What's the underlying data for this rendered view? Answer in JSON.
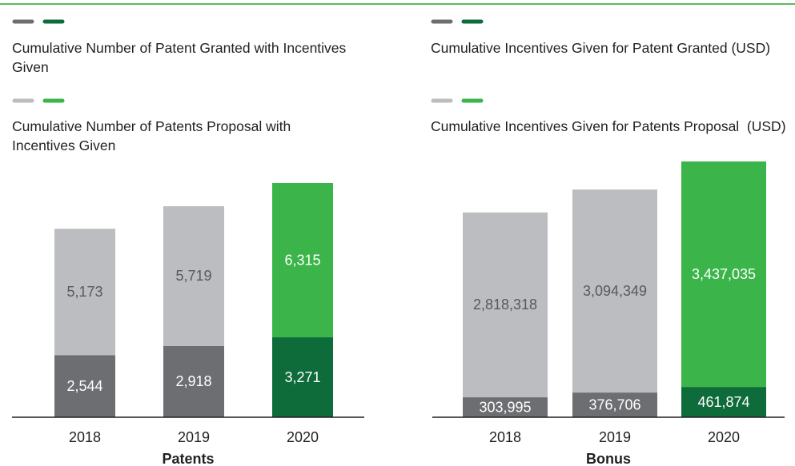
{
  "chart_data": [
    {
      "type": "stacked_bar",
      "xlabel": "Patents",
      "categories": [
        "2018",
        "2019",
        "2020"
      ],
      "series": [
        {
          "name": "Cumulative Number of Patent Granted with Incentives Given",
          "colors": [
            "#6d6e71",
            "#6d6e71",
            "#0e6b3a"
          ],
          "values": [
            2544,
            2918,
            3271
          ],
          "value_labels": [
            "2,544",
            "2,918",
            "3,271"
          ]
        },
        {
          "name": "Cumulative Number of Patents Proposal with Incentives Given",
          "colors": [
            "#bcbdc0",
            "#bcbdc0",
            "#3bb54a"
          ],
          "values": [
            5173,
            5719,
            6315
          ],
          "value_labels": [
            "5,173",
            "5,719",
            "6,315"
          ]
        }
      ]
    },
    {
      "type": "stacked_bar",
      "xlabel": "Bonus",
      "categories": [
        "2018",
        "2019",
        "2020"
      ],
      "series": [
        {
          "name": "Cumulative Incentives Given for Patent Granted (USD)",
          "colors": [
            "#6d6e71",
            "#6d6e71",
            "#0e6b3a"
          ],
          "values": [
            303995,
            376706,
            461874
          ],
          "value_labels": [
            "303,995",
            "376,706",
            "461,874"
          ]
        },
        {
          "name": "Cumulative Incentives Given for Patents Proposal  (USD)",
          "colors": [
            "#bcbdc0",
            "#bcbdc0",
            "#3bb54a"
          ],
          "values": [
            2818318,
            3094349,
            3437035
          ],
          "value_labels": [
            "2,818,318",
            "3,094,349",
            "3,437,035"
          ]
        }
      ]
    }
  ]
}
